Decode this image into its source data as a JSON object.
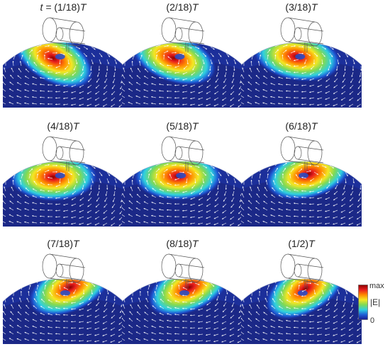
{
  "figure": {
    "panels": [
      {
        "prefix": "t = ",
        "label": "(1/18)",
        "unit": "T",
        "hotspot": {
          "dx": -14,
          "dy": 0,
          "rot": 30
        }
      },
      {
        "prefix": "",
        "label": "(2/18)",
        "unit": "T",
        "hotspot": {
          "dx": -12,
          "dy": 0,
          "rot": 20
        }
      },
      {
        "prefix": "",
        "label": "(3/18)",
        "unit": "T",
        "hotspot": {
          "dx": -6,
          "dy": -2,
          "rot": 10
        }
      },
      {
        "prefix": "",
        "label": "(4/18)",
        "unit": "T",
        "hotspot": {
          "dx": -14,
          "dy": 0,
          "rot": 0
        }
      },
      {
        "prefix": "",
        "label": "(5/18)",
        "unit": "T",
        "hotspot": {
          "dx": -6,
          "dy": -1,
          "rot": 0
        }
      },
      {
        "prefix": "",
        "label": "(6/18)",
        "unit": "T",
        "hotspot": {
          "dx": 10,
          "dy": -4,
          "rot": -15
        }
      },
      {
        "prefix": "",
        "label": "(7/18)",
        "unit": "T",
        "hotspot": {
          "dx": 10,
          "dy": -10,
          "rot": -25
        }
      },
      {
        "prefix": "",
        "label": "(8/18)",
        "unit": "T",
        "hotspot": {
          "dx": 10,
          "dy": -10,
          "rot": -25
        }
      },
      {
        "prefix": "",
        "label": "(1/2)",
        "unit": "T",
        "hotspot": {
          "dx": 6,
          "dy": -8,
          "rot": -30
        }
      }
    ],
    "colorbar": {
      "max_label": "max",
      "min_label": "0",
      "quantity_label": "|E|",
      "colors": [
        "#8b0000",
        "#e81f1f",
        "#ff8a00",
        "#f5e623",
        "#7ed957",
        "#2fd0e0",
        "#1f5fd6",
        "#1a1a8f"
      ]
    }
  }
}
